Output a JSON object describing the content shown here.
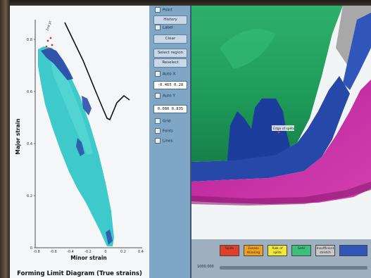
{
  "left_panel": {
    "x_axis_label": "Minor strain",
    "y_axis_label": "Major strain",
    "title": "Forming Limit Diagram (True strains)",
    "x_ticks": [
      "-0.8",
      "-0.6",
      "-0.4",
      "-0.2",
      "0",
      "0.2",
      "0.4"
    ],
    "y_ticks": [
      "0",
      "0.2",
      "0.4",
      "0.6",
      "0.8"
    ],
    "point_label": "2nd pt"
  },
  "controls": {
    "point_label": "Point",
    "history_label": "History",
    "label_label": "Label",
    "clear_label": "Clear",
    "select_region_label": "Select region",
    "reselect_label": "Reselect",
    "auto_x_label": "Auto X",
    "x_range_value": "-0.465 0.28",
    "auto_y_label": "Auto Y",
    "y_range_value": "0.080 0.835",
    "grid_label": "Grid",
    "fonts_label": "Fonts",
    "lines_label": "Lines"
  },
  "viewport": {
    "annotation": "Edge of splits"
  },
  "legend": {
    "items": [
      {
        "label": "Splits",
        "color": "#e0402a"
      },
      {
        "label": "Excess thinning",
        "color": "#f0a020"
      },
      {
        "label": "Risk of splits",
        "color": "#f2e83a"
      },
      {
        "label": "Safe",
        "color": "#3ac07a"
      },
      {
        "label": "Insufficient stretch",
        "color": "#c8c8c8"
      },
      {
        "label": "",
        "color": "#2f56b8"
      }
    ],
    "progress_value": "1000.000"
  },
  "colors": {
    "fld_cyan": "#2ec4c6",
    "fld_blue": "#2d4ea8",
    "part_green": "#1f9a55",
    "part_blue": "#1d3d9c",
    "part_magenta": "#c22ea3"
  }
}
